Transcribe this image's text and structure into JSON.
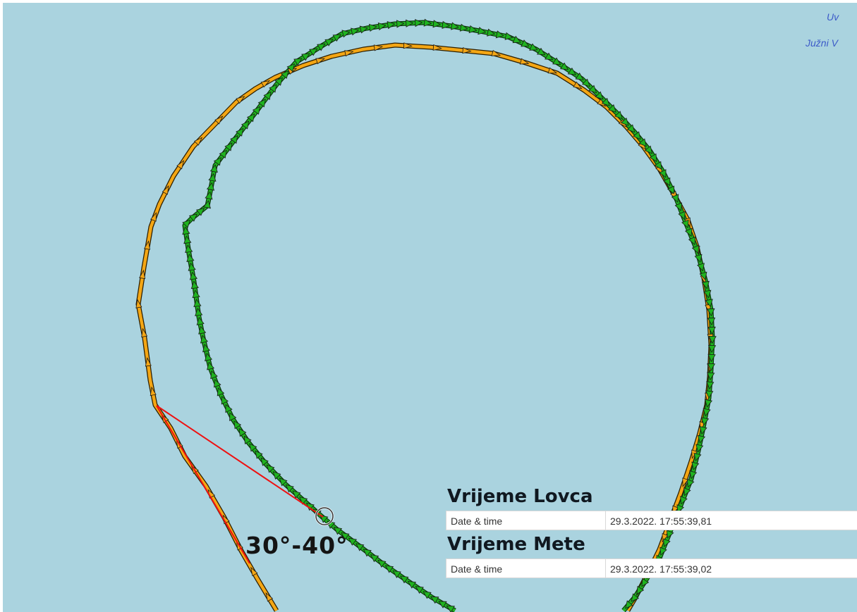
{
  "map": {
    "corner_labels": [
      "Uv",
      "Južni V"
    ]
  },
  "tracks": {
    "hunter_color": "#f4a614",
    "target_color": "#1fb31f",
    "sightline_color": "#ee1111"
  },
  "angle_label": "30°-40°",
  "hunter_panel": {
    "title": "Vrijeme Lovca",
    "key": "Date & time",
    "value": "29.3.2022. 17:55:39,81"
  },
  "target_panel": {
    "title": "Vrijeme Mete",
    "key": "Date & time",
    "value": "29.3.2022. 17:55:39,02"
  }
}
